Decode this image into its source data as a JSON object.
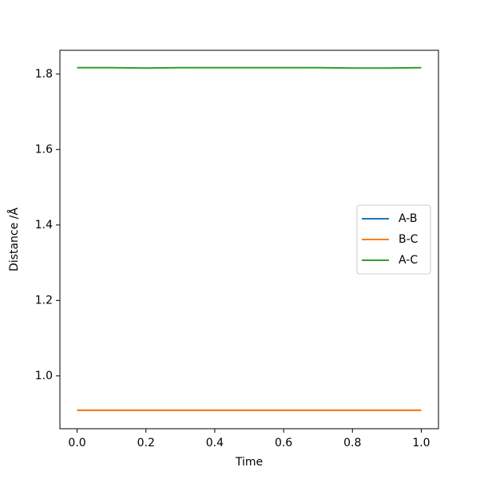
{
  "chart_data": {
    "type": "line",
    "xlabel": "Time",
    "ylabel": "Distance /Å",
    "x": [
      0,
      0.1,
      0.2,
      0.3,
      0.4,
      0.5,
      0.6,
      0.7,
      0.8,
      0.9,
      1
    ],
    "series": [
      {
        "name": "A-B",
        "color": "#1f77b4",
        "values": [
          0.909,
          0.909,
          0.909,
          0.909,
          0.909,
          0.909,
          0.909,
          0.909,
          0.909,
          0.909,
          0.909
        ]
      },
      {
        "name": "B-C",
        "color": "#ff7f0e",
        "values": [
          0.909,
          0.909,
          0.909,
          0.909,
          0.909,
          0.909,
          0.909,
          0.909,
          0.909,
          0.909,
          0.909
        ]
      },
      {
        "name": "A-C",
        "color": "#2ca02c",
        "values": [
          1.817,
          1.817,
          1.816,
          1.817,
          1.817,
          1.817,
          1.817,
          1.817,
          1.816,
          1.816,
          1.817
        ]
      }
    ],
    "xlim": [
      -0.05,
      1.05
    ],
    "xticks": [
      {
        "value": 0,
        "label": "0.0"
      },
      0.2,
      0.4,
      0.6,
      0.8,
      {
        "value": 1,
        "label": "1.0"
      }
    ],
    "ylim": [
      0.86,
      1.863
    ],
    "yticks": [
      {
        "value": 1,
        "label": "1.0"
      },
      1.2,
      1.4,
      1.6,
      1.8
    ],
    "legend": "center right",
    "grid": false
  }
}
